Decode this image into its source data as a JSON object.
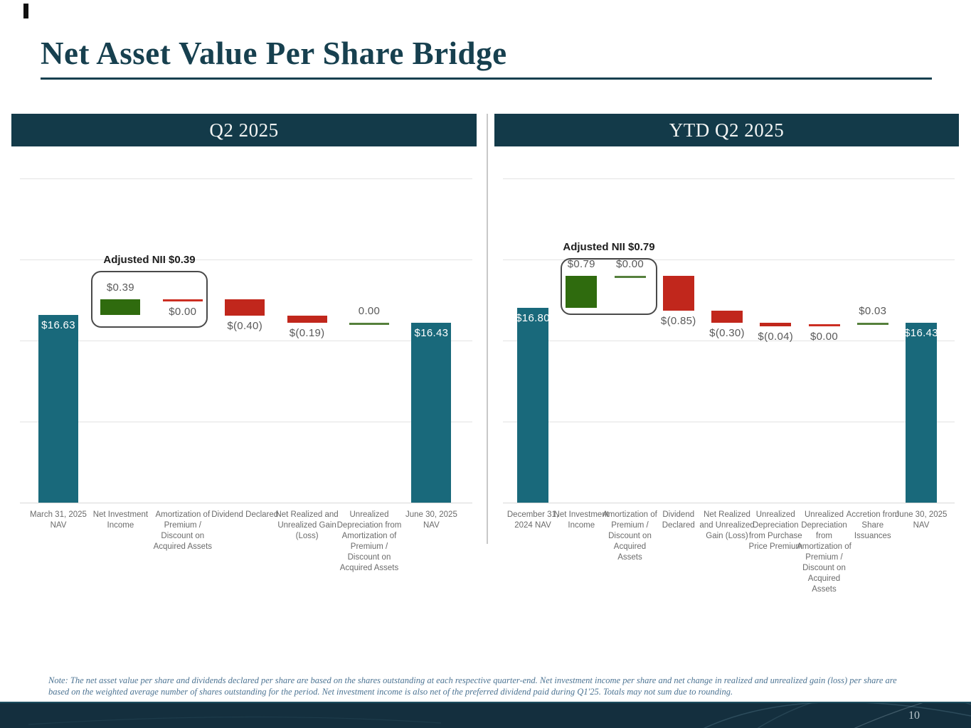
{
  "slide": {
    "title": "Net Asset Value Per Share Bridge",
    "page_number": "10",
    "footnote": "Note: The net asset value per share and dividends declared per share are based on the shares outstanding at each respective quarter-end. Net investment income per share and net change in realized and unrealized gain (loss) per share are based on the weighted average number of shares outstanding for the period. Net investment income is also net of the preferred dividend paid during Q1'25. Totals may not sum due to rounding."
  },
  "colors": {
    "nav_total_teal": "#19697B",
    "positive_green": "#2F6B0E",
    "negative_red": "#C1271C",
    "zero_line_green": "#55803C",
    "zero_line_red": "#CC2E22",
    "header_banner": "#133A49",
    "title_text": "#17404F",
    "footer_bar": "#142F3E"
  },
  "chart_data": [
    {
      "type": "bar",
      "subtype": "waterfall",
      "title": "Q2 2025",
      "annotation": "Adjusted NII $0.39",
      "annotation_covers": [
        "Net Investment Income",
        "Amortization of Premium / Discount on Acquired Assets"
      ],
      "ylim": [
        12,
        20
      ],
      "gridlines": [
        12,
        14,
        16,
        18,
        20
      ],
      "grid": "on",
      "bars": [
        {
          "category": "March 31, 2025 NAV",
          "value": 16.63,
          "display": "$16.63",
          "style": "total",
          "label_pos": "inside"
        },
        {
          "category": "Net Investment Income",
          "value": 0.39,
          "display": "$0.39",
          "style": "green",
          "label_pos": "above"
        },
        {
          "category": "Amortization of Premium / Discount on Acquired Assets",
          "value": 0.0,
          "display": "$0.00",
          "style": "red-line",
          "label_pos": "below"
        },
        {
          "category": "Dividend Declared",
          "value": -0.4,
          "display": "$(0.40)",
          "style": "red",
          "label_pos": "below"
        },
        {
          "category": "Net Realized and Unrealized Gain (Loss)",
          "value": -0.19,
          "display": "$(0.19)",
          "style": "red",
          "label_pos": "below"
        },
        {
          "category": "Unrealized Depreciation from Amortization of Premium / Discount on Acquired Assets",
          "value": 0.0,
          "display": "0.00",
          "style": "green-line",
          "label_pos": "above"
        },
        {
          "category": "June 30, 2025 NAV",
          "value": 16.43,
          "display": "$16.43",
          "style": "total",
          "label_pos": "inside"
        }
      ]
    },
    {
      "type": "bar",
      "subtype": "waterfall",
      "title": "YTD Q2 2025",
      "annotation": "Adjusted NII $0.79",
      "annotation_covers": [
        "Net Investment Income",
        "Amortization of Premium / Discount on Acquired Assets"
      ],
      "ylim": [
        12,
        20
      ],
      "gridlines": [
        12,
        14,
        16,
        18,
        20
      ],
      "grid": "on",
      "bars": [
        {
          "category": "December 31, 2024 NAV",
          "value": 16.8,
          "display": "$16.80",
          "style": "total",
          "label_pos": "inside"
        },
        {
          "category": "Net Investment Income",
          "value": 0.79,
          "display": "$0.79",
          "style": "green",
          "label_pos": "above"
        },
        {
          "category": "Amortization of Premium / Discount on Acquired Assets",
          "value": 0.0,
          "display": "$0.00",
          "style": "green-line",
          "label_pos": "above"
        },
        {
          "category": "Dividend Declared",
          "value": -0.85,
          "display": "$(0.85)",
          "style": "red",
          "label_pos": "below"
        },
        {
          "category": "Net Realized and Unrealized Gain (Loss)",
          "value": -0.3,
          "display": "$(0.30)",
          "style": "red",
          "label_pos": "below"
        },
        {
          "category": "Unrealized Depreciation from Purchase Price Premium",
          "value": -0.04,
          "display": "$(0.04)",
          "style": "red",
          "label_pos": "below"
        },
        {
          "category": "Unrealized Depreciation from Amortization of Premium / Discount on Acquired Assets",
          "value": 0.0,
          "display": "$0.00",
          "style": "red-line",
          "label_pos": "below"
        },
        {
          "category": "Accretion from Share Issuances",
          "value": 0.03,
          "display": "$0.03",
          "style": "green-line",
          "label_pos": "above"
        },
        {
          "category": "June 30, 2025 NAV",
          "value": 16.43,
          "display": "$16.43",
          "style": "total",
          "label_pos": "inside"
        }
      ]
    }
  ]
}
